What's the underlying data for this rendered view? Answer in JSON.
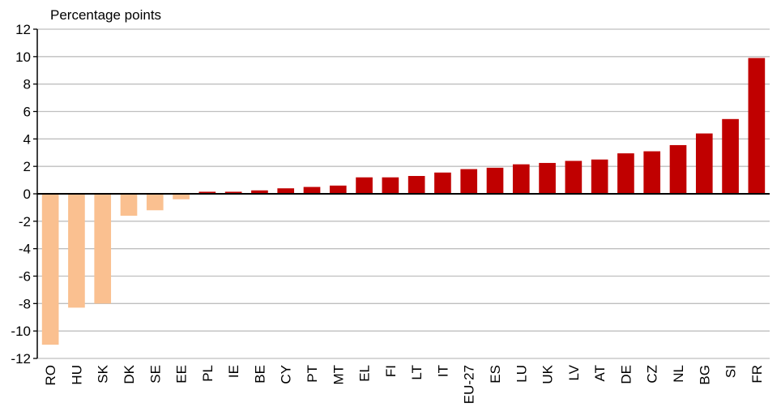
{
  "chart_data": {
    "type": "bar",
    "ylabel": "Percentage points",
    "ylim": [
      -12,
      12
    ],
    "yticks": [
      -12,
      -10,
      -8,
      -6,
      -4,
      -2,
      0,
      2,
      4,
      6,
      8,
      10,
      12
    ],
    "grid": true,
    "categories": [
      "RO",
      "HU",
      "SK",
      "DK",
      "SE",
      "EE",
      "PL",
      "IE",
      "BE",
      "CY",
      "PT",
      "MT",
      "EL",
      "FI",
      "LT",
      "IT",
      "EU-27",
      "ES",
      "LU",
      "UK",
      "LV",
      "AT",
      "DE",
      "CZ",
      "NL",
      "BG",
      "SI",
      "FR"
    ],
    "values": [
      -11.0,
      -8.3,
      -8.0,
      -1.6,
      -1.2,
      -0.4,
      0.15,
      0.15,
      0.25,
      0.4,
      0.5,
      0.6,
      1.2,
      1.2,
      1.3,
      1.55,
      1.8,
      1.9,
      2.15,
      2.25,
      2.4,
      2.5,
      2.95,
      3.1,
      3.55,
      4.4,
      5.45,
      9.9
    ],
    "colors": {
      "positive": "#c00000",
      "negative": "#fac090",
      "grid": "#bfbfbf",
      "axis": "#000000"
    }
  }
}
